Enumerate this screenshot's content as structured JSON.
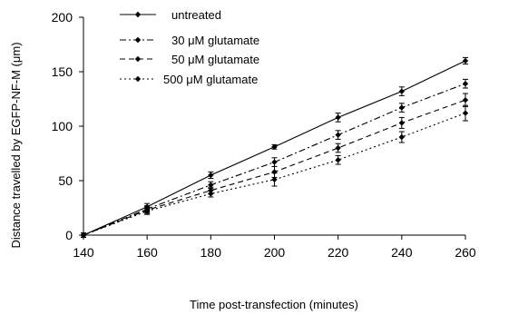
{
  "chart_data": {
    "type": "line",
    "xlabel": "Time post-transfection (minutes)",
    "ylabel": "Distance travelled by EGFP-NF-M (μm)",
    "xlim": [
      140,
      260
    ],
    "ylim": [
      0,
      200
    ],
    "xticks": [
      140,
      160,
      180,
      200,
      220,
      240,
      260
    ],
    "yticks": [
      0,
      50,
      100,
      150,
      200
    ],
    "grid": false,
    "legend_position": "top-left",
    "x": [
      140,
      160,
      180,
      200,
      220,
      240,
      260
    ],
    "series": [
      {
        "name": "untreated",
        "line_style": "solid",
        "values": [
          0,
          26,
          55,
          81,
          108,
          132,
          160
        ],
        "errors": [
          2,
          3,
          3,
          2,
          4,
          4,
          3
        ]
      },
      {
        "name": "30 μM glutamate",
        "line_style": "dash-dot",
        "values": [
          0,
          24,
          46,
          67,
          92,
          117,
          139
        ],
        "errors": [
          2,
          3,
          3,
          4,
          4,
          4,
          4
        ]
      },
      {
        "name": "50 μM glutamate",
        "line_style": "dashed",
        "values": [
          0,
          23,
          41,
          58,
          80,
          103,
          124
        ],
        "errors": [
          2,
          3,
          3,
          5,
          4,
          5,
          6
        ]
      },
      {
        "name": "500 μM glutamate",
        "line_style": "dotted",
        "values": [
          0,
          22,
          38,
          51,
          69,
          90,
          112
        ],
        "errors": [
          2,
          3,
          3,
          6,
          4,
          5,
          7
        ]
      }
    ]
  }
}
